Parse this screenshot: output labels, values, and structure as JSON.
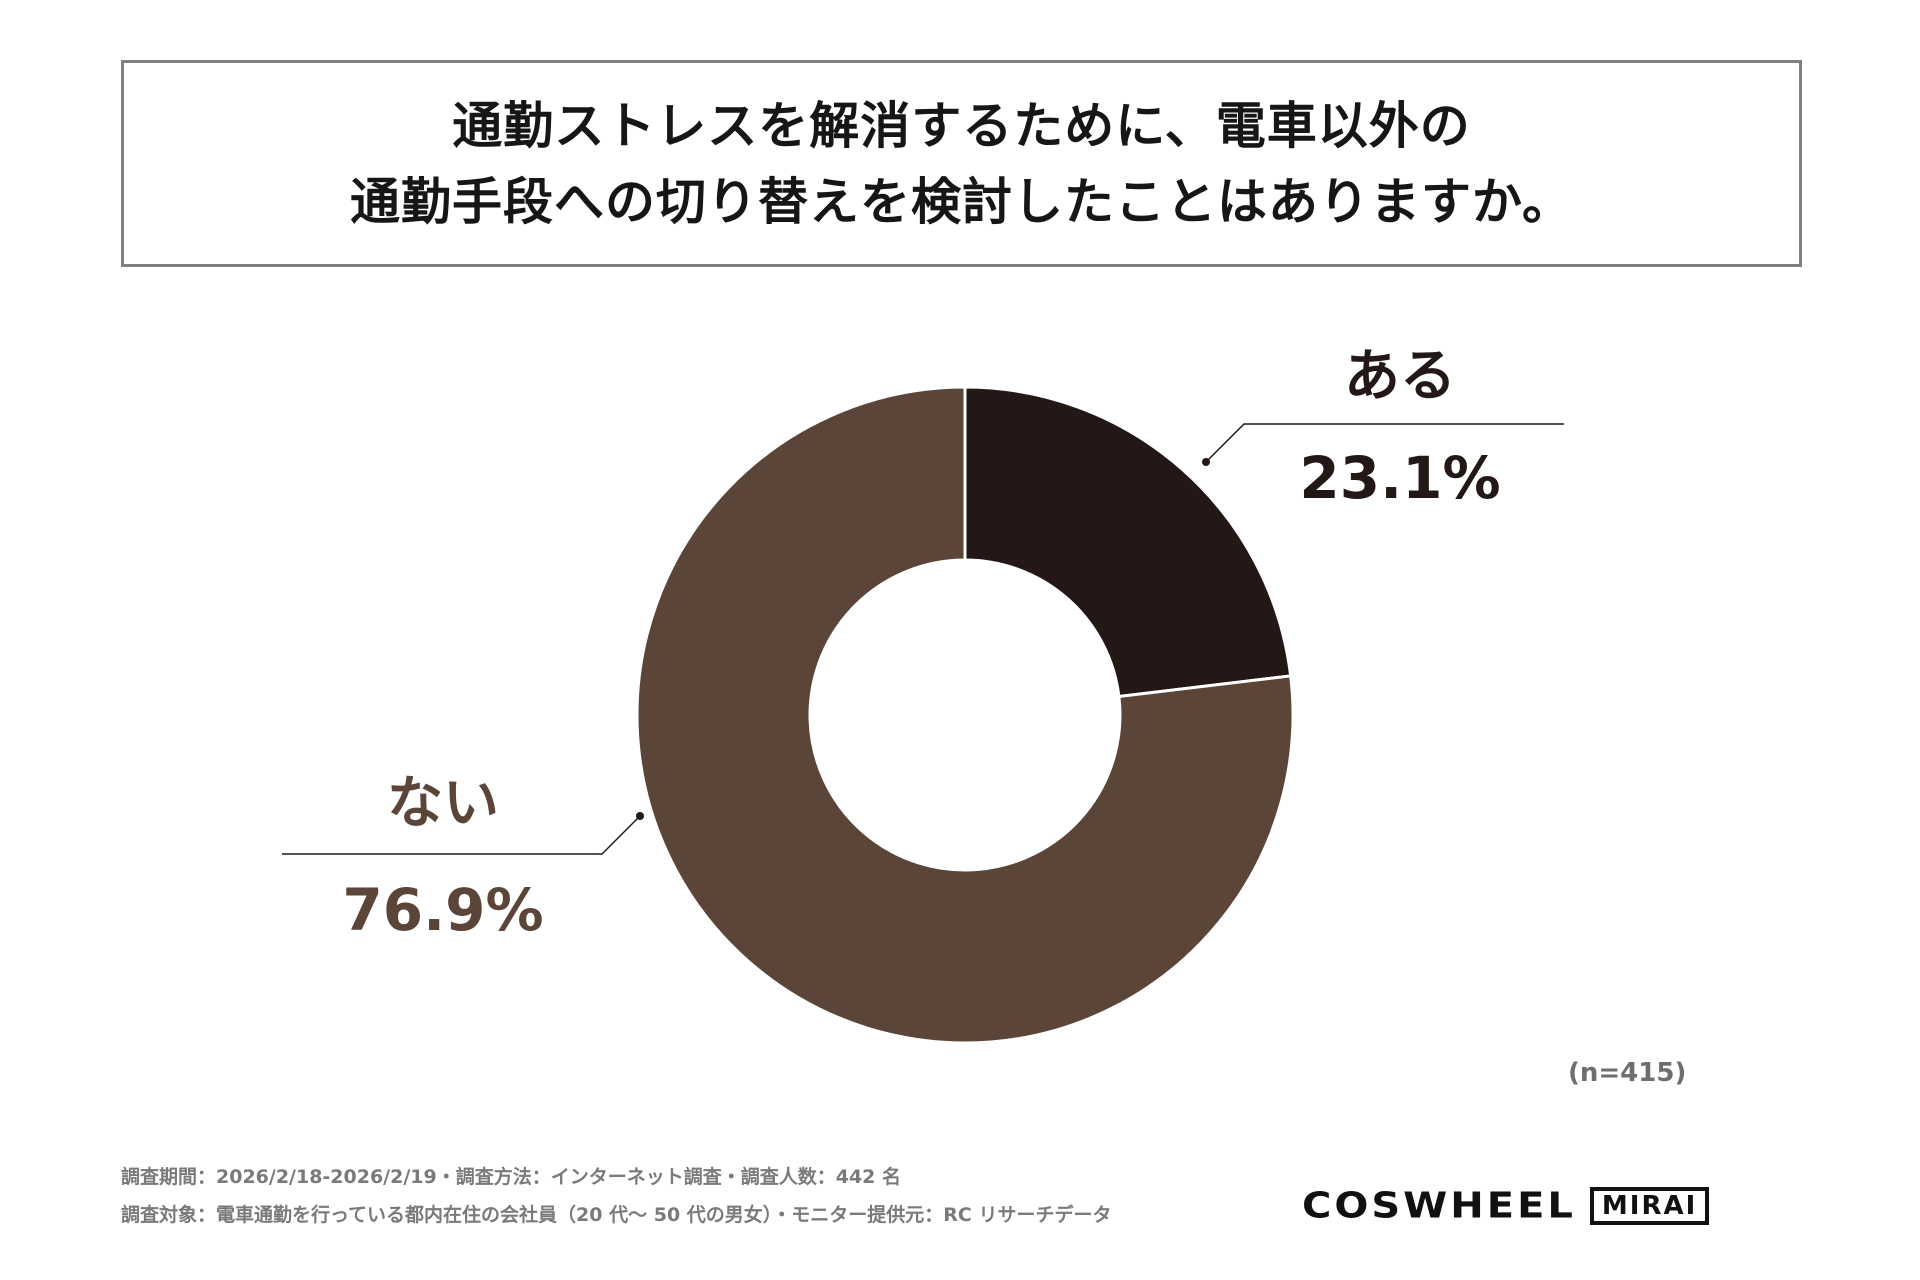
{
  "title": {
    "line1": "通勤ストレスを解消するために、電車以外の",
    "line2": "通勤手段への切り替えを検討したことはありますか。"
  },
  "chart_data": {
    "type": "pie",
    "variant": "donut",
    "categories": [
      "ある",
      "ない"
    ],
    "values": [
      23.1,
      76.9
    ],
    "value_labels": [
      "23.1%",
      "76.9%"
    ],
    "colors": [
      "#231816",
      "#5a4538"
    ],
    "label_colors": [
      "#231816",
      "#5a4538"
    ],
    "start_angle_deg": 0,
    "direction": "clockwise"
  },
  "sample_note": "(n=415)",
  "footer": {
    "line1": "調査期間：2026/2/18-2026/2/19・調査方法：インターネット調査・調査人数：442 名",
    "line2": "調査対象：電車通勤を行っている都内在住の会社員（20 代～ 50 代の男女）・モニター提供元：RC リサーチデータ"
  },
  "brand": {
    "name": "COSWHEEL",
    "sub": "MIRAI"
  }
}
